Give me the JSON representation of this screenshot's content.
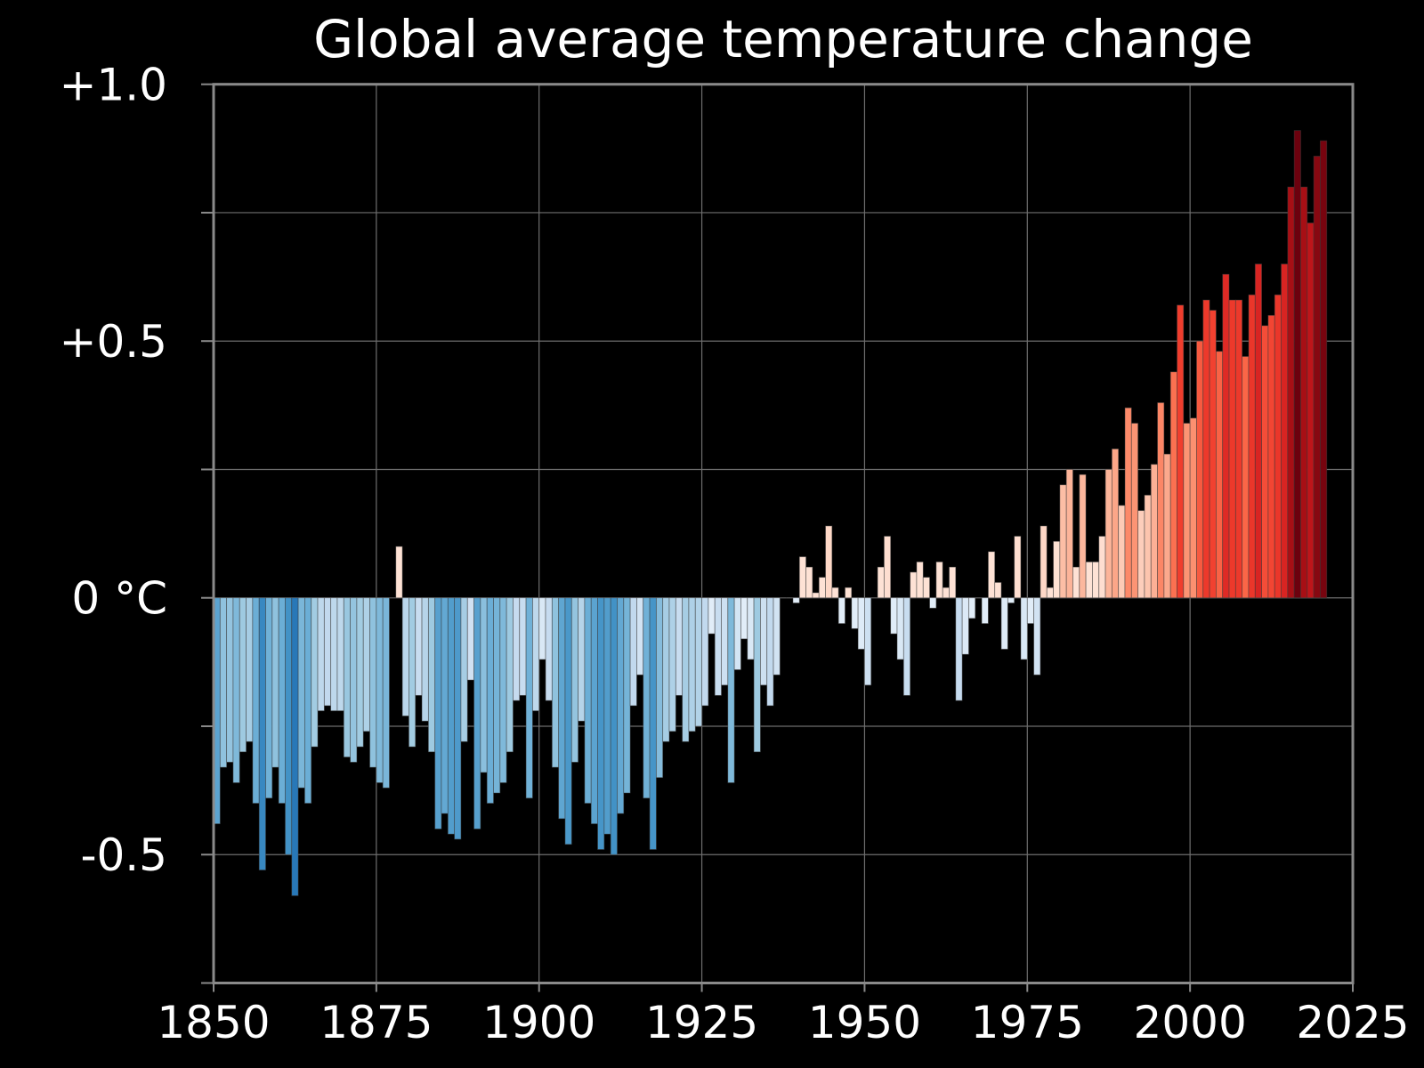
{
  "chart_data": {
    "type": "bar",
    "title": "Global average temperature change",
    "xlabel": "",
    "ylabel": "",
    "xlim": [
      1850,
      2025
    ],
    "ylim": [
      -0.75,
      1.0
    ],
    "grid": true,
    "x_ticks": [
      {
        "value": 1850,
        "label": "1850"
      },
      {
        "value": 1875,
        "label": "1875"
      },
      {
        "value": 1900,
        "label": "1900"
      },
      {
        "value": 1925,
        "label": "1925"
      },
      {
        "value": 1950,
        "label": "1950"
      },
      {
        "value": 1975,
        "label": "1975"
      },
      {
        "value": 2000,
        "label": "2000"
      },
      {
        "value": 2025,
        "label": "2025"
      }
    ],
    "y_ticks": [
      {
        "value": 1.0,
        "label": "+1.0"
      },
      {
        "value": 0.75,
        "label": ""
      },
      {
        "value": 0.5,
        "label": "+0.5"
      },
      {
        "value": 0.25,
        "label": ""
      },
      {
        "value": 0,
        "label": "0 °C"
      },
      {
        "value": -0.25,
        "label": ""
      },
      {
        "value": -0.5,
        "label": "-0.5"
      },
      {
        "value": -0.75,
        "label": ""
      }
    ],
    "first_year": 1850,
    "values": [
      -0.44,
      -0.33,
      -0.32,
      -0.36,
      -0.3,
      -0.28,
      -0.4,
      -0.53,
      -0.39,
      -0.33,
      -0.4,
      -0.5,
      -0.58,
      -0.37,
      -0.4,
      -0.29,
      -0.22,
      -0.21,
      -0.22,
      -0.22,
      -0.31,
      -0.32,
      -0.29,
      -0.26,
      -0.33,
      -0.36,
      -0.37,
      0.0,
      0.1,
      -0.23,
      -0.29,
      -0.19,
      -0.24,
      -0.3,
      -0.45,
      -0.42,
      -0.46,
      -0.47,
      -0.28,
      -0.16,
      -0.45,
      -0.34,
      -0.4,
      -0.38,
      -0.36,
      -0.3,
      -0.2,
      -0.19,
      -0.39,
      -0.22,
      -0.12,
      -0.2,
      -0.33,
      -0.43,
      -0.48,
      -0.32,
      -0.24,
      -0.4,
      -0.44,
      -0.49,
      -0.46,
      -0.5,
      -0.42,
      -0.38,
      -0.21,
      -0.15,
      -0.39,
      -0.49,
      -0.35,
      -0.28,
      -0.26,
      -0.19,
      -0.28,
      -0.26,
      -0.25,
      -0.21,
      -0.07,
      -0.19,
      -0.17,
      -0.36,
      -0.14,
      -0.08,
      -0.12,
      -0.3,
      -0.17,
      -0.21,
      -0.15,
      0.0,
      0.0,
      -0.01,
      0.08,
      0.06,
      0.01,
      0.04,
      0.14,
      0.02,
      -0.05,
      0.02,
      -0.06,
      -0.1,
      -0.17,
      0.0,
      0.06,
      0.12,
      -0.07,
      -0.12,
      -0.19,
      0.05,
      0.07,
      0.04,
      -0.02,
      0.07,
      0.02,
      0.06,
      -0.2,
      -0.11,
      -0.04,
      0.0,
      -0.05,
      0.09,
      0.03,
      -0.1,
      -0.01,
      0.12,
      -0.12,
      -0.05,
      -0.15,
      0.14,
      0.02,
      0.11,
      0.22,
      0.25,
      0.06,
      0.24,
      0.07,
      0.07,
      0.12,
      0.25,
      0.29,
      0.18,
      0.37,
      0.34,
      0.17,
      0.2,
      0.26,
      0.38,
      0.28,
      0.44,
      0.57,
      0.34,
      0.35,
      0.5,
      0.58,
      0.56,
      0.48,
      0.63,
      0.58,
      0.58,
      0.47,
      0.59,
      0.65,
      0.53,
      0.55,
      0.59,
      0.65,
      0.8,
      0.91,
      0.8,
      0.73,
      0.86,
      0.89
    ],
    "colormap": {
      "negative": [
        "#f7fbff",
        "#deebf7",
        "#c6dbef",
        "#9ecae1",
        "#6baed6",
        "#4292c6",
        "#2171b5"
      ],
      "positive": [
        "#fff5f0",
        "#fee0d2",
        "#fcbba1",
        "#fc9272",
        "#fb6a4a",
        "#ef3b2c",
        "#cb181d",
        "#a50f15",
        "#67000d"
      ]
    },
    "colors": {
      "background": "#000000",
      "frame": "#8a8a8a",
      "grid": "#6e6e6e",
      "text": "#ffffff"
    }
  }
}
